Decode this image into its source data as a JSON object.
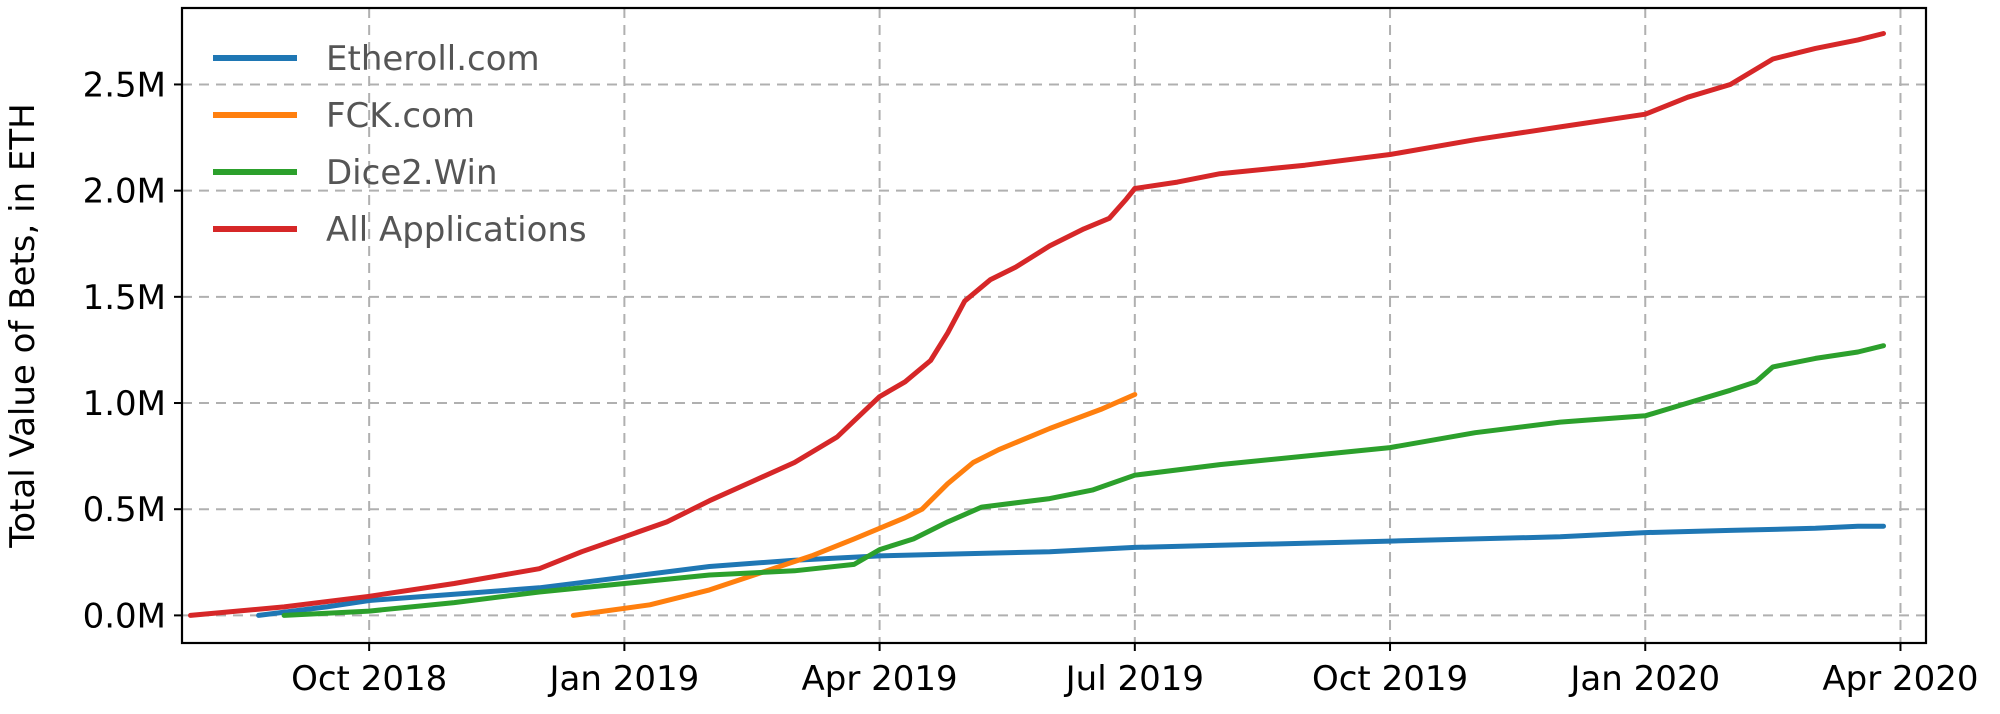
{
  "chart_data": {
    "type": "line",
    "title": "",
    "xlabel": "",
    "ylabel": "Total Value of Bets, in ETH",
    "x_unit": "months since Jul 2018",
    "xlim": [
      0.8,
      21.3
    ],
    "ylim": [
      -0.13,
      2.86
    ],
    "grid": true,
    "legend_position": "top-left",
    "x_ticks": [
      {
        "value": 3,
        "label": "Oct 2018"
      },
      {
        "value": 6,
        "label": "Jan 2019"
      },
      {
        "value": 9,
        "label": "Apr 2019"
      },
      {
        "value": 12,
        "label": "Jul 2019"
      },
      {
        "value": 15,
        "label": "Oct 2019"
      },
      {
        "value": 18,
        "label": "Jan 2020"
      },
      {
        "value": 21,
        "label": "Apr 2020"
      }
    ],
    "y_ticks": [
      {
        "value": 0.0,
        "label": "0.0M"
      },
      {
        "value": 0.5,
        "label": "0.5M"
      },
      {
        "value": 1.0,
        "label": "1.0M"
      },
      {
        "value": 1.5,
        "label": "1.5M"
      },
      {
        "value": 2.0,
        "label": "2.0M"
      },
      {
        "value": 2.5,
        "label": "2.5M"
      }
    ],
    "series": [
      {
        "name": "Etheroll.com",
        "color": "#1f77b4",
        "x": [
          1.7,
          2.5,
          3.0,
          4.0,
          5.0,
          6.0,
          7.0,
          8.0,
          9.0,
          10.0,
          11.0,
          12.0,
          13.0,
          14.0,
          15.0,
          16.0,
          17.0,
          18.0,
          19.0,
          20.0,
          20.5,
          20.8
        ],
        "y": [
          0.0,
          0.04,
          0.07,
          0.1,
          0.13,
          0.18,
          0.23,
          0.26,
          0.28,
          0.29,
          0.3,
          0.32,
          0.33,
          0.34,
          0.35,
          0.36,
          0.37,
          0.39,
          0.4,
          0.41,
          0.42,
          0.42
        ]
      },
      {
        "name": "FCK.com",
        "color": "#ff7f0e",
        "x": [
          5.4,
          6.3,
          7.0,
          7.6,
          8.2,
          8.7,
          9.0,
          9.3,
          9.5,
          9.8,
          10.1,
          10.4,
          11.0,
          11.6,
          12.0
        ],
        "y": [
          0.0,
          0.05,
          0.12,
          0.2,
          0.28,
          0.36,
          0.41,
          0.46,
          0.5,
          0.62,
          0.72,
          0.78,
          0.88,
          0.97,
          1.04
        ]
      },
      {
        "name": "Dice2.Win",
        "color": "#2ca02c",
        "x": [
          2.0,
          3.0,
          4.0,
          5.0,
          6.0,
          7.0,
          8.0,
          8.7,
          9.0,
          9.4,
          9.8,
          10.2,
          11.0,
          11.5,
          12.0,
          13.0,
          14.0,
          15.0,
          16.0,
          17.0,
          18.0,
          18.5,
          19.0,
          19.3,
          19.5,
          20.0,
          20.5,
          20.8
        ],
        "y": [
          0.0,
          0.02,
          0.06,
          0.11,
          0.15,
          0.19,
          0.21,
          0.24,
          0.31,
          0.36,
          0.44,
          0.51,
          0.55,
          0.59,
          0.66,
          0.71,
          0.75,
          0.79,
          0.86,
          0.91,
          0.94,
          1.0,
          1.06,
          1.1,
          1.17,
          1.21,
          1.24,
          1.27
        ]
      },
      {
        "name": "All Applications",
        "color": "#d62728",
        "x": [
          0.9,
          2.0,
          3.0,
          4.0,
          5.0,
          5.5,
          6.0,
          6.5,
          7.0,
          7.5,
          8.0,
          8.5,
          9.0,
          9.3,
          9.6,
          9.8,
          10.0,
          10.3,
          10.6,
          11.0,
          11.4,
          11.7,
          11.9,
          12.0,
          12.5,
          13.0,
          14.0,
          15.0,
          16.0,
          17.0,
          18.0,
          18.5,
          19.0,
          19.5,
          20.0,
          20.5,
          20.8
        ],
        "y": [
          0.0,
          0.04,
          0.09,
          0.15,
          0.22,
          0.3,
          0.37,
          0.44,
          0.54,
          0.63,
          0.72,
          0.84,
          1.03,
          1.1,
          1.2,
          1.33,
          1.48,
          1.58,
          1.64,
          1.74,
          1.82,
          1.87,
          1.96,
          2.01,
          2.04,
          2.08,
          2.12,
          2.17,
          2.24,
          2.3,
          2.36,
          2.44,
          2.5,
          2.62,
          2.67,
          2.71,
          2.74
        ]
      }
    ]
  }
}
